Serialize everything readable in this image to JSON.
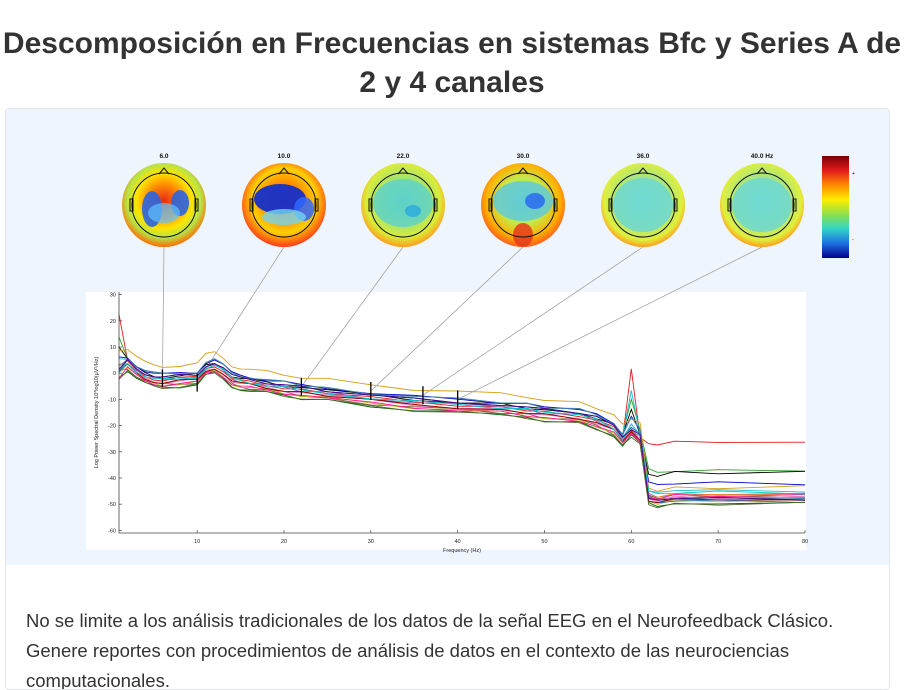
{
  "page": {
    "title": "Descomposición en Frecuencias en sistemas Bfc y Series A de 2 y 4 canales",
    "description": "No se limite a los análisis tradicionales de los datos de la señal EEG en el Neurofeedback Clásico. Genere reportes con procedimientos de análisis de datos en el contexto de las neurociencias computacionales."
  },
  "topomaps": [
    {
      "label": "6.0",
      "freq": 6,
      "pattern": "blue-centre"
    },
    {
      "label": "10.0",
      "freq": 10,
      "pattern": "blue-frontal"
    },
    {
      "label": "22.0",
      "freq": 22,
      "pattern": "cyan-green"
    },
    {
      "label": "30.0",
      "freq": 30,
      "pattern": "cyan-red-occipital"
    },
    {
      "label": "36.0",
      "freq": 36,
      "pattern": "cyan"
    },
    {
      "label": "40.0 Hz",
      "freq": 40,
      "pattern": "cyan"
    }
  ],
  "colorbar": {
    "plus_label": "+",
    "minus_label": "-",
    "colors": [
      "#7a0000",
      "#e31a1c",
      "#ff8c00",
      "#ffee00",
      "#8fe04a",
      "#30d5c8",
      "#1e6fe0",
      "#00008b"
    ]
  },
  "chart_data": {
    "type": "line",
    "xlabel": "Frequency (Hz)",
    "ylabel": "Log Power Spectral Density 10*log10(µV²/Hz)",
    "xlim": [
      1,
      80
    ],
    "ylim": [
      -61,
      31
    ],
    "xticks": [
      10,
      20,
      30,
      40,
      50,
      60,
      70,
      80
    ],
    "yticks": [
      30,
      20,
      10,
      0,
      -10,
      -20,
      -30,
      -40,
      -50,
      -60
    ],
    "grid": false,
    "markers": [
      6,
      10,
      22,
      30,
      36,
      40
    ],
    "template": {
      "x": [
        1,
        2,
        3,
        4,
        5,
        6,
        8,
        10,
        11,
        12,
        13,
        14,
        15,
        16,
        18,
        20,
        22,
        25,
        30,
        35,
        40,
        45,
        48,
        50,
        54,
        56,
        58,
        59,
        60,
        61,
        62,
        63,
        65,
        70,
        80
      ],
      "y": [
        8,
        4,
        1,
        -1,
        -2,
        -2.5,
        -2,
        -1.5,
        2,
        3,
        1,
        -2,
        -3,
        -3.5,
        -4.5,
        -5.5,
        -6.5,
        -7.5,
        -9.5,
        -11,
        -12,
        -13,
        -14,
        -15,
        -16,
        -18,
        -21,
        -25,
        -20,
        -24,
        -38,
        -44,
        -45,
        -45,
        -45
      ]
    },
    "series": [
      {
        "name": "",
        "color": "#e41a1c",
        "offset": 0,
        "tail": -26.5,
        "peak": 2,
        "start": 22
      },
      {
        "name": "",
        "color": "#2ca02c",
        "offset": 2,
        "tail": -37,
        "peak": -10,
        "start": 14
      },
      {
        "name": "",
        "color": "#000000",
        "offset": 1,
        "tail": -38,
        "peak": -14,
        "start": 10
      },
      {
        "name": "",
        "color": "#0000cc",
        "offset": 2,
        "tail": -42,
        "peak": -16,
        "start": 6
      },
      {
        "name": "",
        "color": "#d4a017",
        "offset": 5,
        "tail": -43.5,
        "peak": -18,
        "start": 9
      },
      {
        "name": "",
        "color": "#17becf",
        "offset": 1,
        "tail": -45,
        "peak": -6,
        "start": 5
      },
      {
        "name": "",
        "color": "#9467bd",
        "offset": 0,
        "tail": -46,
        "peak": -20,
        "start": 4
      },
      {
        "name": "",
        "color": "#ff7f0e",
        "offset": -1,
        "tail": -46.5,
        "peak": -21,
        "start": 3
      },
      {
        "name": "",
        "color": "#8c564b",
        "offset": -2,
        "tail": -47,
        "peak": -22,
        "start": 2
      },
      {
        "name": "",
        "color": "#e377c2",
        "offset": -1,
        "tail": -47.5,
        "peak": -21,
        "start": 2
      },
      {
        "name": "",
        "color": "#7f7f7f",
        "offset": 0,
        "tail": -48,
        "peak": -22,
        "start": 1
      },
      {
        "name": "",
        "color": "#bcbd22",
        "offset": -2,
        "tail": -48.5,
        "peak": -23,
        "start": 1
      },
      {
        "name": "",
        "color": "#1f77b4",
        "offset": 1,
        "tail": -49,
        "peak": -20,
        "start": 0
      },
      {
        "name": "",
        "color": "#006400",
        "offset": -3,
        "tail": -49.5,
        "peak": -24,
        "start": -1
      },
      {
        "name": "",
        "color": "#8b0000",
        "offset": -1,
        "tail": -48.5,
        "peak": -22,
        "start": 0
      },
      {
        "name": "",
        "color": "#4682b4",
        "offset": 2,
        "tail": -47.5,
        "peak": -17,
        "start": 3
      },
      {
        "name": "",
        "color": "#ff1493",
        "offset": -2,
        "tail": -46.8,
        "peak": -23,
        "start": -2
      },
      {
        "name": "",
        "color": "#00ced1",
        "offset": 0,
        "tail": -45.5,
        "peak": -19,
        "start": 0
      },
      {
        "name": "",
        "color": "#556b2f",
        "offset": -3,
        "tail": -49.8,
        "peak": -25,
        "start": -2
      },
      {
        "name": "",
        "color": "#4b0082",
        "offset": 1,
        "tail": -48,
        "peak": -21,
        "start": 1
      }
    ]
  }
}
